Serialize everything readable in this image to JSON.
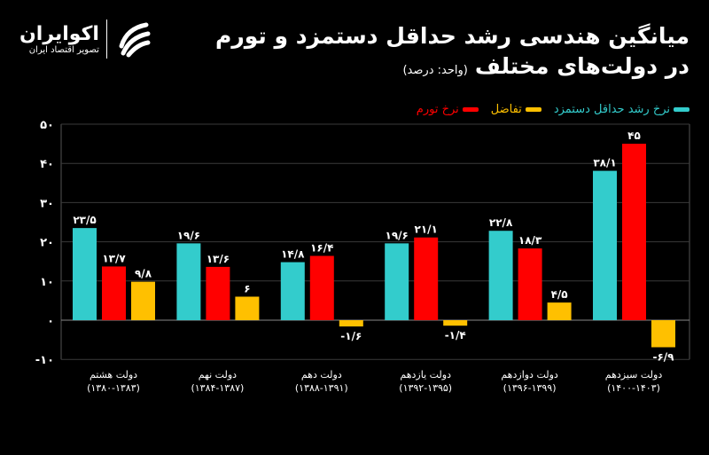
{
  "header": {
    "title_line1": "میانگین هندسی رشد حداقل دستمزد و تورم",
    "title_line2": "در دولت‌های مختلف",
    "unit": "(واحد: درصد)"
  },
  "logo": {
    "name": "اکوایران",
    "tagline": "تصویر اقتصاد ایران"
  },
  "chart_data": {
    "type": "bar",
    "title": "میانگین هندسی رشد حداقل دستمزد و تورم در دولت‌های مختلف",
    "unit": "(واحد: درصد)",
    "ylim": [
      -10,
      50
    ],
    "yticks": [
      50,
      40,
      30,
      20,
      10,
      0,
      -10
    ],
    "ytick_labels": [
      "۵۰",
      "۴۰",
      "۳۰",
      "۲۰",
      "۱۰",
      "۰",
      "-۱۰"
    ],
    "grid": true,
    "legend_position": "top-right",
    "categories": [
      {
        "name": "دولت هشتم",
        "years": "(۱۳۸۰-۱۳۸۳)"
      },
      {
        "name": "دولت نهم",
        "years": "(۱۳۸۴-۱۳۸۷)"
      },
      {
        "name": "دولت دهم",
        "years": "(۱۳۸۸-۱۳۹۱)"
      },
      {
        "name": "دولت یازدهم",
        "years": "(۱۳۹۲-۱۳۹۵)"
      },
      {
        "name": "دولت دوازدهم",
        "years": "(۱۳۹۶-۱۳۹۹)"
      },
      {
        "name": "دولت سیزدهم",
        "years": "(۱۴۰۰-۱۴۰۳)"
      }
    ],
    "series": [
      {
        "name": "نرخ رشد حداقل دستمزد",
        "color": "#33cccc",
        "values": [
          23.5,
          19.6,
          14.8,
          19.6,
          22.8,
          38.1
        ],
        "labels": [
          "۲۳/۵",
          "۱۹/۶",
          "۱۴/۸",
          "۱۹/۶",
          "۲۲/۸",
          "۳۸/۱"
        ]
      },
      {
        "name": "نرخ تورم",
        "color": "#ff0000",
        "values": [
          13.7,
          13.6,
          16.4,
          21.1,
          18.3,
          45
        ],
        "labels": [
          "۱۳/۷",
          "۱۳/۶",
          "۱۶/۴",
          "۲۱/۱",
          "۱۸/۳",
          "۴۵"
        ]
      },
      {
        "name": "تفاضل",
        "color": "#ffc000",
        "values": [
          9.8,
          6,
          -1.6,
          -1.4,
          4.5,
          -6.9
        ],
        "labels": [
          "۹/۸",
          "۶",
          "-۱/۶",
          "-۱/۴",
          "۴/۵",
          "-۶/۹"
        ]
      }
    ]
  }
}
